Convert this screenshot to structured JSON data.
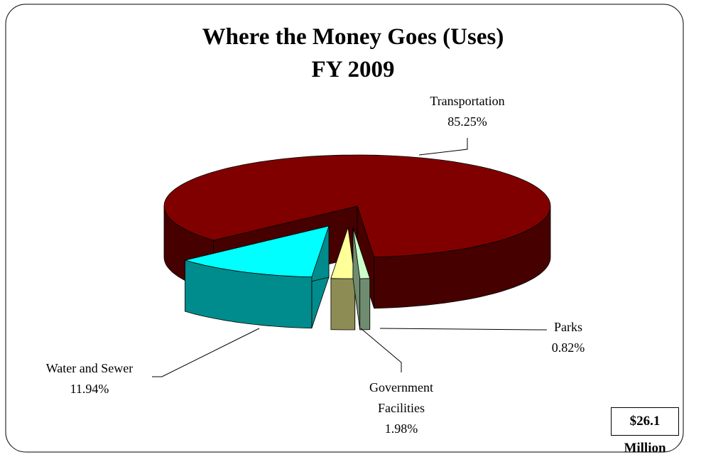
{
  "chart_data": {
    "type": "pie3d",
    "title": "Where the Money Goes (Uses)",
    "subtitle": "FY 2009",
    "categories": [
      "Transportation",
      "Water and Sewer",
      "Government Facilities",
      "Parks"
    ],
    "values": [
      85.25,
      11.94,
      1.98,
      0.82
    ],
    "value_labels": [
      "85.25%",
      "11.94%",
      "1.98%",
      "0.82%"
    ],
    "colors": [
      "#800000",
      "#00ffff",
      "#ffff99",
      "#ccffcc"
    ],
    "annotation": "$26.1 Million"
  }
}
